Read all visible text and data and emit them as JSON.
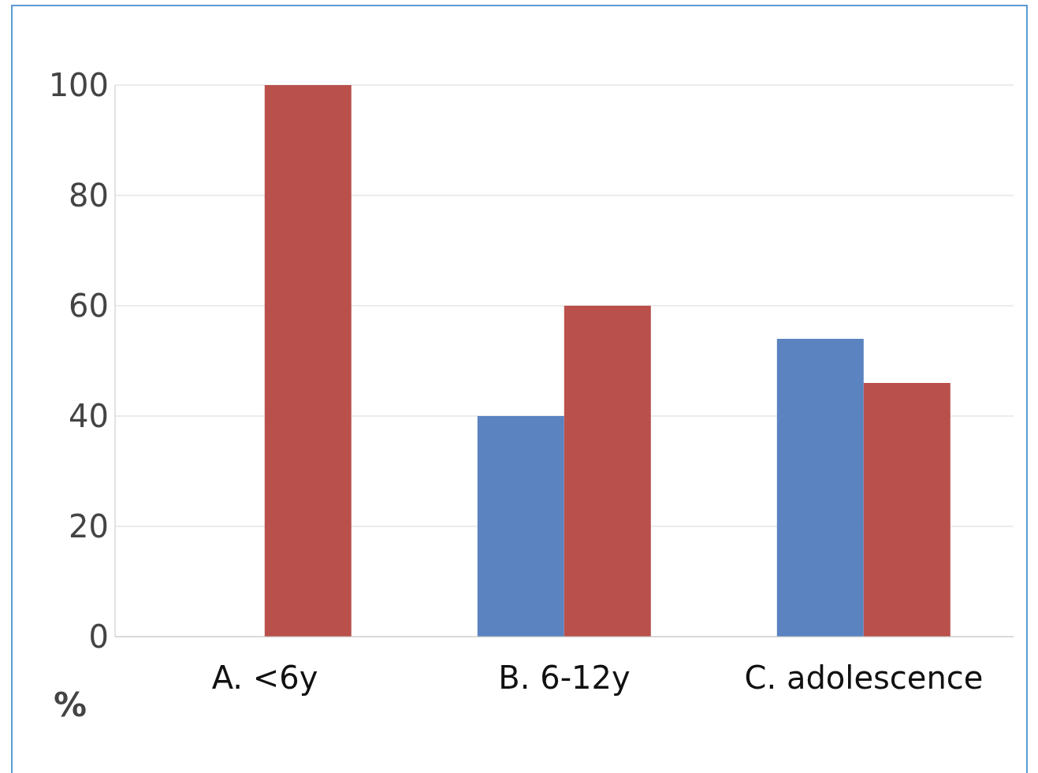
{
  "chart_data": {
    "type": "bar",
    "ylabel": "%",
    "categories": [
      "A. <6y",
      "B. 6-12y",
      "C. adolescence"
    ],
    "series": [
      {
        "color": "#5a83c0",
        "values": [
          0,
          40,
          54
        ]
      },
      {
        "color": "#b9504b",
        "values": [
          100,
          60,
          46
        ]
      }
    ],
    "ylim": [
      0,
      100
    ],
    "yticks": [
      0,
      20,
      40,
      60,
      80,
      100
    ],
    "grid": "y",
    "legend": false
  }
}
